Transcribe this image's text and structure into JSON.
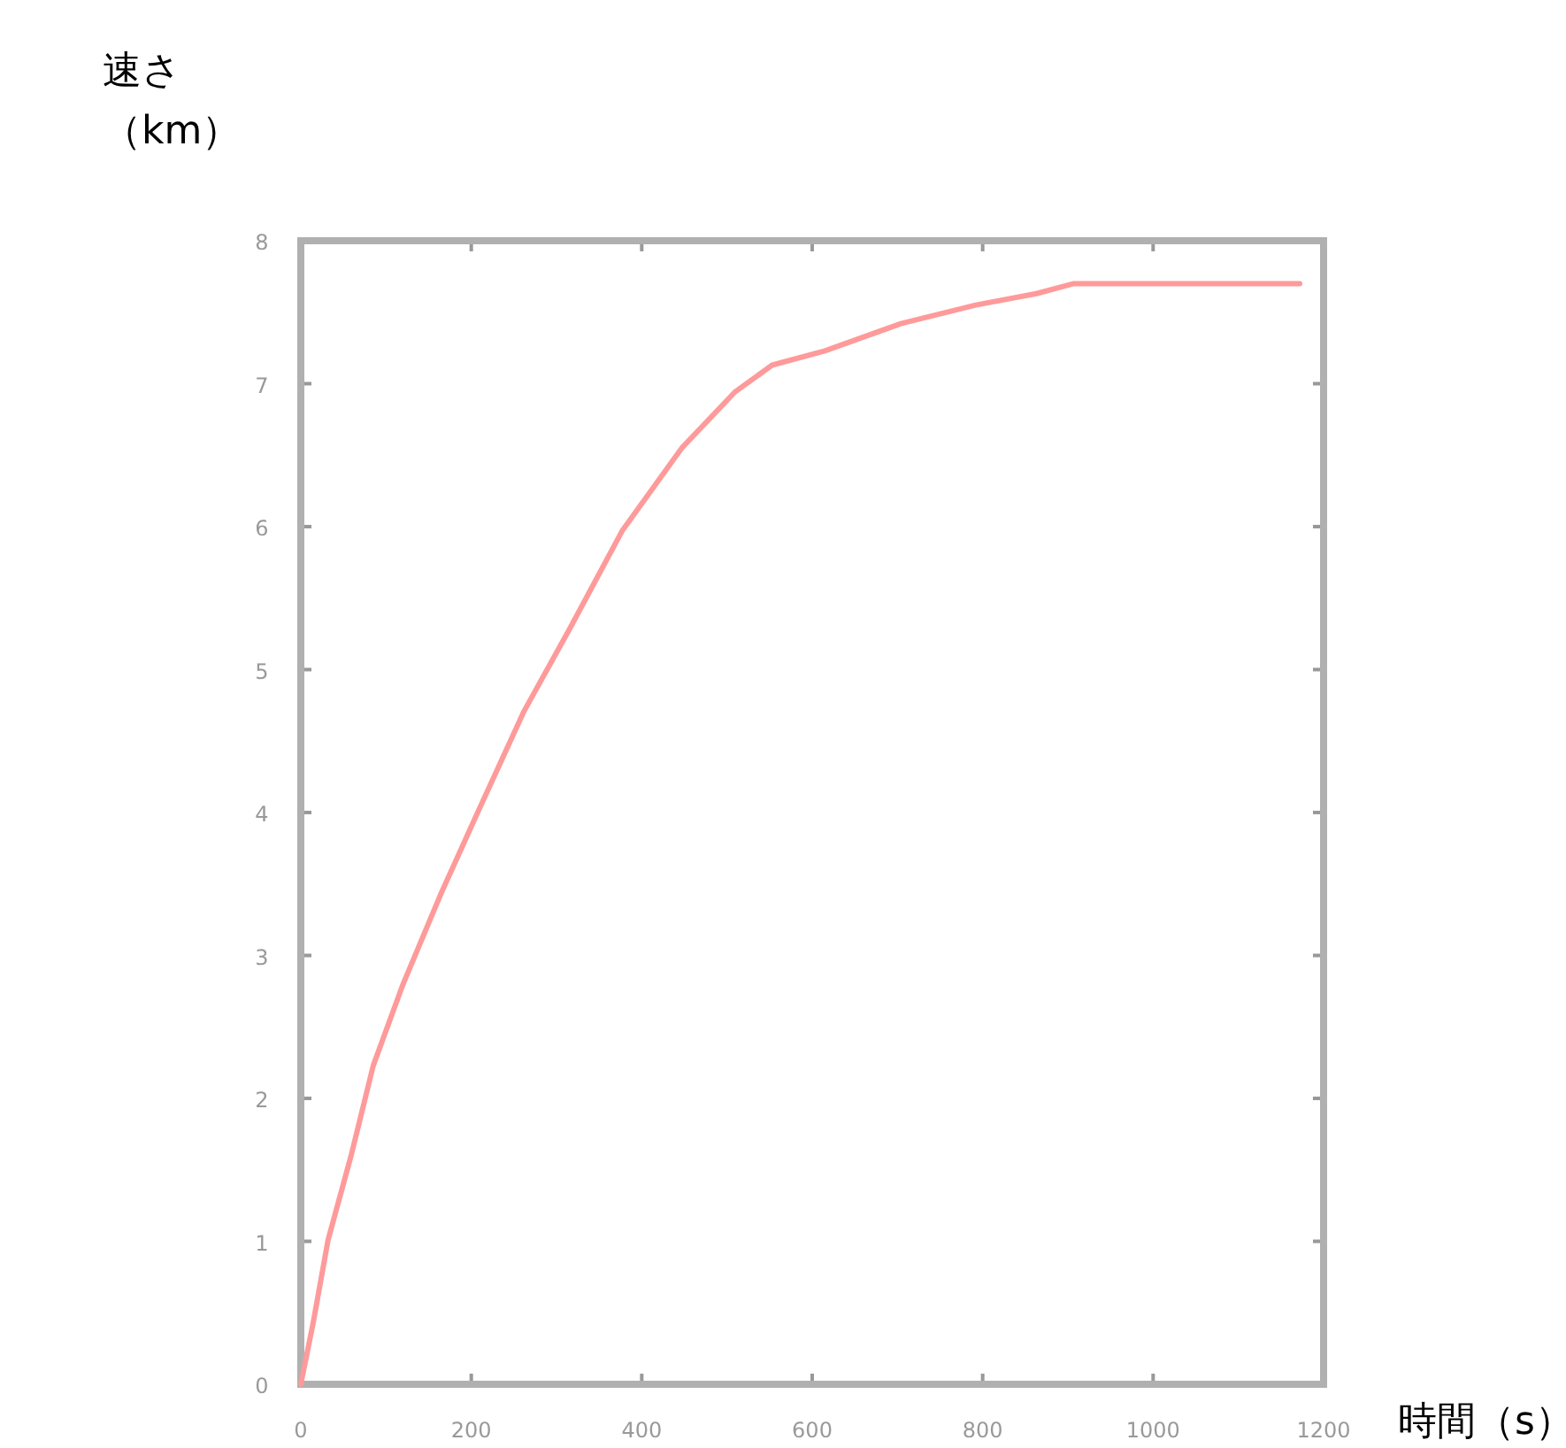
{
  "chart_data": {
    "type": "line",
    "xlabel": "時間（s）",
    "ylabel": "速さ（km）",
    "x": [
      0,
      14.5,
      32,
      59,
      85,
      120,
      165,
      209,
      262,
      315,
      377,
      447,
      509,
      553,
      615,
      704,
      792,
      863,
      907,
      1172
    ],
    "series": [
      {
        "color": "#ff9a9a",
        "values": [
          0,
          0.43,
          1.01,
          1.6,
          2.23,
          2.8,
          3.44,
          4.02,
          4.71,
          5.28,
          5.97,
          6.55,
          6.94,
          7.13,
          7.23,
          7.42,
          7.55,
          7.63,
          7.7,
          7.7
        ]
      }
    ],
    "xlim": [
      0,
      1200
    ],
    "xticks": [
      0,
      200,
      400,
      600,
      800,
      1000,
      1200
    ],
    "ylim": [
      0,
      8
    ],
    "yticks": [
      0,
      1,
      2,
      3,
      4,
      5,
      6,
      7,
      8
    ],
    "grid": false,
    "marker": "none",
    "line_style": "solid"
  }
}
